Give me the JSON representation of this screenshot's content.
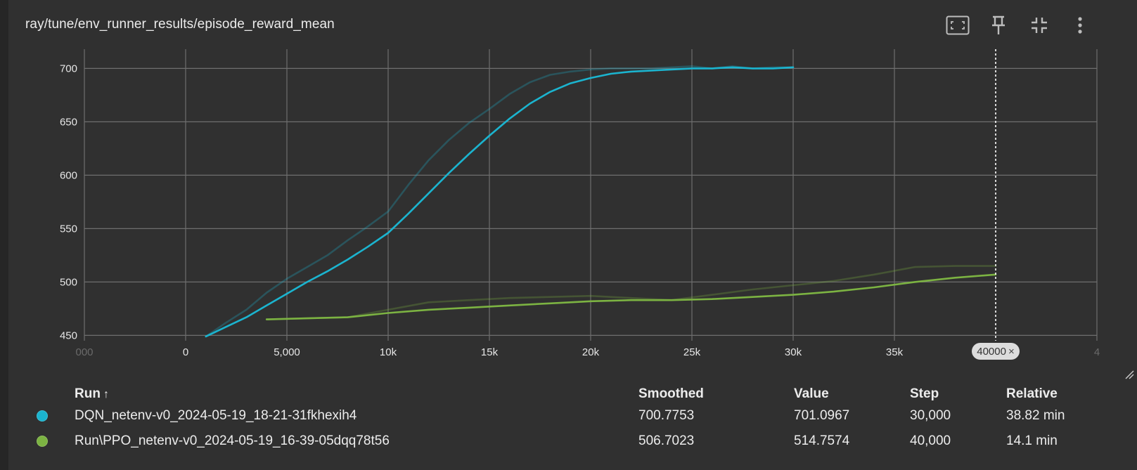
{
  "card": {
    "title": "ray/tune/env_runner_results/episode_reward_mean"
  },
  "toolbar": {
    "icons": [
      "fullscreen-icon",
      "pin-icon",
      "collapse-icon",
      "more-vert-icon"
    ]
  },
  "chart": {
    "x_tick_labels": [
      "000",
      "0",
      "5,000",
      "10k",
      "15k",
      "20k",
      "25k",
      "30k",
      "35k",
      "4"
    ],
    "y_tick_labels": [
      "450",
      "500",
      "550",
      "600",
      "650",
      "700"
    ],
    "hover_chip": {
      "label": "40000",
      "close": "×"
    }
  },
  "chart_data": {
    "type": "line",
    "title": "ray/tune/env_runner_results/episode_reward_mean",
    "xlabel": "",
    "ylabel": "",
    "xlim": [
      -5000,
      45000
    ],
    "ylim": [
      445,
      718
    ],
    "y_ticks": [
      450,
      500,
      550,
      600,
      650,
      700
    ],
    "x_ticks": [
      0,
      5000,
      10000,
      15000,
      20000,
      25000,
      30000,
      35000
    ],
    "grid": true,
    "hover_step": 40000,
    "series": [
      {
        "name": "DQN_netenv-v0_2024-05-19_18-21-31fkhexih4",
        "color": "#1bb4cf",
        "kind": "raw",
        "x": [
          1000,
          2000,
          3000,
          4000,
          5000,
          6000,
          7000,
          8000,
          9000,
          10000,
          11000,
          12000,
          13000,
          14000,
          15000,
          16000,
          17000,
          18000,
          19000,
          20000,
          21000,
          22000,
          23000,
          24000,
          25000,
          26000,
          27000,
          28000,
          29000,
          30000
        ],
        "y": [
          449,
          462,
          474,
          490,
          503,
          514,
          525,
          539,
          552,
          566,
          591,
          614,
          633,
          649,
          662,
          676,
          687,
          694,
          697,
          699,
          700,
          700,
          700,
          701,
          702,
          700,
          702,
          700,
          701,
          701
        ]
      },
      {
        "name": "DQN_netenv-v0_2024-05-19_18-21-31fkhexih4",
        "color": "#1bb4cf",
        "kind": "smoothed",
        "x": [
          1000,
          2000,
          3000,
          4000,
          5000,
          6000,
          7000,
          8000,
          9000,
          10000,
          11000,
          12000,
          13000,
          14000,
          15000,
          16000,
          17000,
          18000,
          19000,
          20000,
          21000,
          22000,
          23000,
          24000,
          25000,
          26000,
          27000,
          28000,
          29000,
          30000
        ],
        "y": [
          449,
          458,
          467,
          478,
          489,
          500,
          510,
          521,
          533,
          546,
          564,
          583,
          602,
          620,
          637,
          653,
          667,
          678,
          686,
          691,
          695,
          697,
          698,
          699,
          700,
          700,
          701,
          700,
          700,
          701
        ]
      },
      {
        "name": "Run\\PPO_netenv-v0_2024-05-19_16-39-05dqq78t56",
        "color": "#7cb342",
        "kind": "raw",
        "x": [
          4000,
          6000,
          8000,
          10000,
          12000,
          14000,
          16000,
          18000,
          20000,
          22000,
          24000,
          26000,
          28000,
          30000,
          32000,
          34000,
          36000,
          38000,
          40000
        ],
        "y": [
          465,
          466,
          467,
          474,
          481,
          483,
          485,
          486,
          487,
          485,
          483,
          488,
          493,
          497,
          501,
          507,
          514,
          515,
          515
        ]
      },
      {
        "name": "Run\\PPO_netenv-v0_2024-05-19_16-39-05dqq78t56",
        "color": "#7cb342",
        "kind": "smoothed",
        "x": [
          4000,
          6000,
          8000,
          10000,
          12000,
          14000,
          16000,
          18000,
          20000,
          22000,
          24000,
          26000,
          28000,
          30000,
          32000,
          34000,
          36000,
          38000,
          40000
        ],
        "y": [
          465,
          466,
          467,
          471,
          474,
          476,
          478,
          480,
          482,
          483,
          483,
          484,
          486,
          488,
          491,
          495,
          500,
          504,
          507
        ]
      }
    ]
  },
  "table": {
    "headers": {
      "run": "Run",
      "sort": "↑",
      "smoothed": "Smoothed",
      "value": "Value",
      "step": "Step",
      "relative": "Relative"
    },
    "rows": [
      {
        "color": "#1bb4cf",
        "run": "DQN_netenv-v0_2024-05-19_18-21-31fkhexih4",
        "smoothed": "700.7753",
        "value": "701.0967",
        "step": "30,000",
        "relative": "38.82 min"
      },
      {
        "color": "#7cb342",
        "run": "Run\\PPO_netenv-v0_2024-05-19_16-39-05dqq78t56",
        "smoothed": "506.7023",
        "value": "514.7574",
        "step": "40,000",
        "relative": "14.1 min"
      }
    ]
  }
}
